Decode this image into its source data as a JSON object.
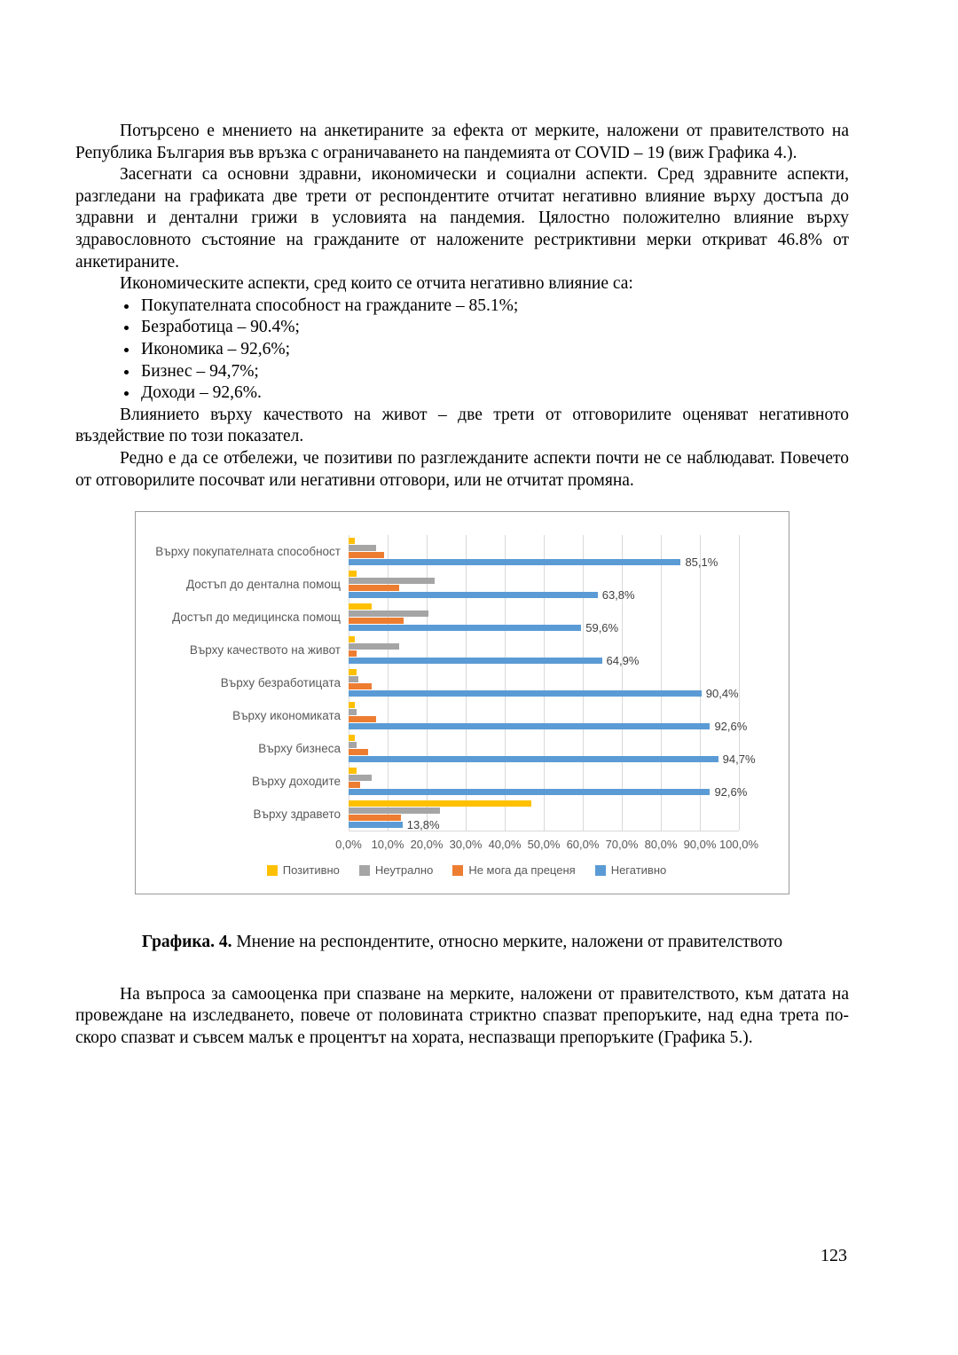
{
  "page": {
    "number": "123"
  },
  "paragraphs": {
    "p1": "Потърсено е мнението на анкетираните за ефекта от мерките, наложени от правителството на Република България във връзка с ограничаването на пандемията от COVID – 19 (виж Графика 4.).",
    "p2": "Засегнати са основни здравни, икономически и социални аспекти. Сред здравните аспекти, разгледани на графиката две трети от респондентите отчитат негативно влияние върху достъпа до здравни и дентални грижи в условията на пандемия. Цялостно положително влияние върху здравословното състояние на гражданите от наложените рестриктивни мерки откриват 46.8% от анкетираните.",
    "p3": "Икономическите аспекти, сред които се отчита негативно влияние са:",
    "bullets": [
      "Покупателната способност на гражданите – 85.1%;",
      "Безработица – 90.4%;",
      "Икономика – 92,6%;",
      "Бизнес – 94,7%;",
      "Доходи – 92,6%."
    ],
    "p4": "Влиянието върху качеството на живот – две трети от отговорилите оценяват негативното въздействие по този показател.",
    "p5": "Редно е да се отбележи, че позитиви по разглежданите аспекти почти не се наблюдават. Повечето от отговорилите посочват или негативни отговори, или не отчитат промяна.",
    "p6": "На въпроса за самооценка при спазване на мерките, наложени от правителството, към датата на провеждане на изследването, повече от половината стриктно спазват препоръките, над една трета по-скоро спазват и съвсем малък е процентът на хората, неспазващи препоръките (Графика 5.)."
  },
  "figure": {
    "caption_bold": "Графика. 4.",
    "caption_text": " Мнение на респондентите, относно мерките, наложени от правителството"
  },
  "chart_data": {
    "type": "bar",
    "orientation": "horizontal",
    "title": "",
    "xlabel": "",
    "ylabel": "",
    "xlim": [
      0,
      100
    ],
    "grid": true,
    "legend_position": "bottom",
    "categories": [
      "Върху покупателната способност",
      "Достъп до дентална помощ",
      "Достъп до медицинска помощ",
      "Върху качеството на живот",
      "Върху безработицата",
      "Върху икономиката",
      "Върху бизнеса",
      "Върху доходите",
      "Върху здравето"
    ],
    "series": [
      {
        "name": "Позитивно",
        "color": "#FFC000",
        "values": [
          1.5,
          2.0,
          6.0,
          1.5,
          2.0,
          1.5,
          1.5,
          2.0,
          46.8
        ]
      },
      {
        "name": "Неутрално",
        "color": "#A5A5A5",
        "values": [
          7.0,
          22.0,
          20.5,
          13.0,
          2.5,
          2.0,
          2.0,
          6.0,
          23.5
        ]
      },
      {
        "name": "Не мога да преценя",
        "color": "#ED7D31",
        "values": [
          9.0,
          13.0,
          14.0,
          2.0,
          6.0,
          7.0,
          5.0,
          3.0,
          13.5
        ]
      },
      {
        "name": "Негативно",
        "color": "#5B9BD5",
        "values": [
          85.1,
          63.8,
          59.6,
          64.9,
          90.4,
          92.6,
          94.7,
          92.6,
          13.8
        ]
      }
    ],
    "data_labels": [
      "85,1%",
      "63,8%",
      "59,6%",
      "64,9%",
      "90,4%",
      "92,6%",
      "94,7%",
      "92,6%",
      "13,8%"
    ],
    "x_ticks": [
      "0,0%",
      "10,0%",
      "20,0%",
      "30,0%",
      "40,0%",
      "50,0%",
      "60,0%",
      "70,0%",
      "80,0%",
      "90,0%",
      "100,0%"
    ]
  }
}
